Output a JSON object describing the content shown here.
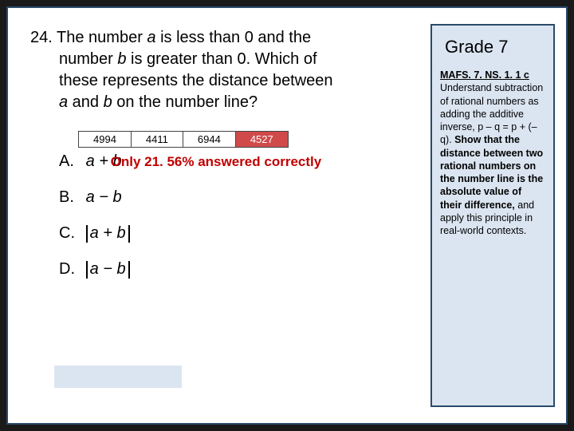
{
  "question": {
    "number": "24.",
    "line1_prefix": "The number ",
    "a": "a",
    "line1_mid": " is less than 0 and the",
    "line2_prefix": "number ",
    "b": "b",
    "line2_mid": " is greater than 0. Which of",
    "line3": "these represents the distance between",
    "line4_prefix": "",
    "line4_a": "a",
    "line4_mid": " and ",
    "line4_b": "b",
    "line4_end": " on the number line?"
  },
  "data_row": {
    "c1": "4994",
    "c2": "4411",
    "c3": "6944",
    "c4": "4527"
  },
  "answers": {
    "A": {
      "letter": "A.",
      "expr": "a + b",
      "note": "Only 21. 56% answered correctly"
    },
    "B": {
      "letter": "B.",
      "expr": "a − b"
    },
    "C": {
      "letter": "C.",
      "expr_inner": "a + b"
    },
    "D": {
      "letter": "D.",
      "expr_inner": "a − b"
    }
  },
  "side": {
    "grade": "Grade 7",
    "code": "MAFS. 7. NS. 1. 1 c",
    "text_plain1": " Understand subtraction of rational numbers as adding the additive inverse, p – q = p + (–q). ",
    "text_bold": "Show that the distance between two rational numbers on the number line is the absolute value of their difference,",
    "text_plain2": " and apply this principle in real-world contexts."
  }
}
